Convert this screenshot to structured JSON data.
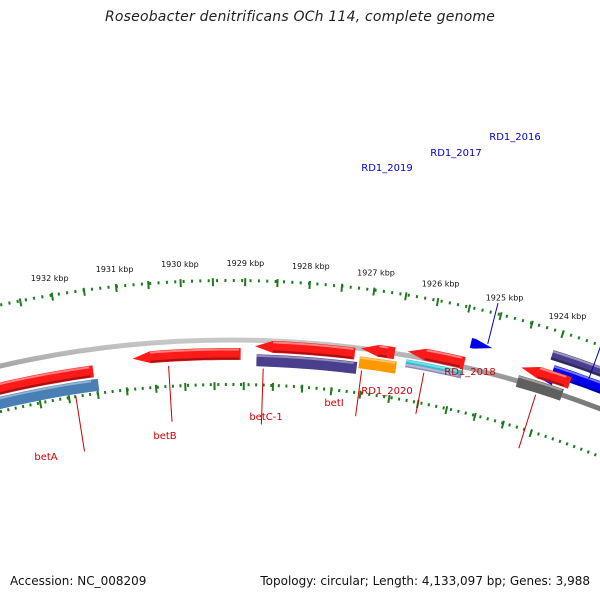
{
  "title": "Roseobacter denitrificans OCh 114, complete genome",
  "footer": {
    "accession": "Accession: NC_008209",
    "summary": "Topology: circular; Length: 4,133,097 bp; Genes: 3,988"
  },
  "colors": {
    "backbone": "#8a8a8a",
    "tick": "#1e7a1e",
    "label_red": "#cc0000",
    "label_blue": "#0000cc",
    "gene_red": "#ff1a1a",
    "gene_navy": "#4a3f8c",
    "gene_steel": "#4a7fb5",
    "gene_orange": "#ff9900",
    "gene_cyan": "#22c4d4",
    "gene_grey": "#5f5f5f",
    "gene_blue": "#0000ee"
  },
  "scale_labels": [
    "1924 kbp",
    "1925 kbp",
    "1926 kbp",
    "1927 kbp",
    "1928 kbp",
    "1929 kbp",
    "1930 kbp",
    "1931 kbp",
    "1932 kbp"
  ],
  "genes_forward": [
    {
      "name": "RD1_2016",
      "color": "gene_navy"
    },
    {
      "name": "RD1_2017",
      "color": "gene_blue"
    },
    {
      "name": "RD1_2019",
      "color": "gene_blue"
    }
  ],
  "genes_reverse": [
    {
      "name": "betA",
      "color": "gene_red"
    },
    {
      "name": "betB",
      "color": "gene_red"
    },
    {
      "name": "betC-1",
      "color": "gene_red"
    },
    {
      "name": "betI",
      "color": "gene_orange"
    },
    {
      "name": "RD1_2020",
      "color": "gene_red"
    },
    {
      "name": "RD1_2018",
      "color": "gene_grey"
    }
  ]
}
